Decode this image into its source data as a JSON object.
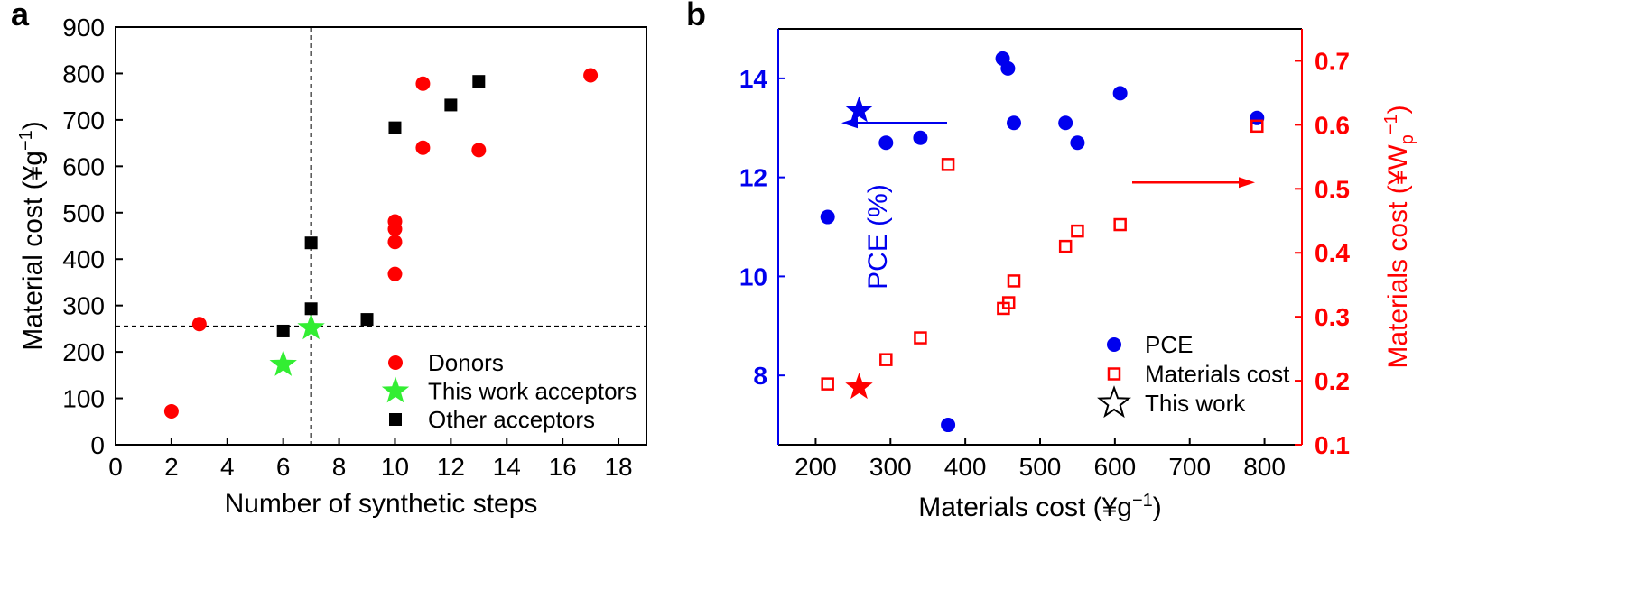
{
  "chart_data": [
    {
      "panel_label": "a",
      "type": "scatter",
      "xlabel": "Number of synthetic steps",
      "ylabel": "Material cost (¥g",
      "ylabel_sup": "−1",
      "ylabel_tail": ")",
      "xlim": [
        0,
        19
      ],
      "ylim": [
        0,
        900
      ],
      "xticks": [
        0,
        2,
        4,
        6,
        8,
        10,
        12,
        14,
        16,
        18
      ],
      "yticks": [
        0,
        100,
        200,
        300,
        400,
        500,
        600,
        700,
        800,
        900
      ],
      "reference_lines": {
        "x": 7,
        "y": 255
      },
      "legend_position": "bottom-right",
      "series": [
        {
          "name": "Donors",
          "marker": "circle",
          "color": "#ff0000",
          "points": [
            [
              2,
              72
            ],
            [
              3,
              260
            ],
            [
              10,
              368
            ],
            [
              10,
              437
            ],
            [
              10,
              465
            ],
            [
              10,
              481
            ],
            [
              11,
              640
            ],
            [
              11,
              778
            ],
            [
              13,
              635
            ],
            [
              17,
              796
            ]
          ]
        },
        {
          "name": "This work acceptors",
          "marker": "star",
          "color": "#33ee33",
          "points": [
            [
              6,
              173
            ],
            [
              7,
              252
            ]
          ]
        },
        {
          "name": "Other acceptors",
          "marker": "square",
          "color": "#000000",
          "points": [
            [
              6,
              245
            ],
            [
              7,
              293
            ],
            [
              7,
              435
            ],
            [
              9,
              270
            ],
            [
              10,
              683
            ],
            [
              12,
              732
            ],
            [
              13,
              783
            ]
          ]
        }
      ]
    },
    {
      "panel_label": "b",
      "type": "scatter",
      "xlabel": "Materials cost (¥g",
      "xlabel_sup": "−1",
      "xlabel_tail": ")",
      "ylabel_left": "PCE (%)",
      "ylabel_right": "Materials cost (¥W",
      "ylabel_right_sub": "p",
      "ylabel_right_sup": "−1",
      "ylabel_right_tail": ")",
      "xlim": [
        150,
        850
      ],
      "ylim_left": [
        6.6,
        15.0
      ],
      "ylim_right": [
        0.1,
        0.75
      ],
      "xticks": [
        200,
        300,
        400,
        500,
        600,
        700,
        800
      ],
      "yticks_left": [
        8,
        10,
        12,
        14
      ],
      "yticks_right": [
        "0.1",
        "0.2",
        "0.3",
        "0.4",
        "0.5",
        "0.6",
        "0.7"
      ],
      "left_color": "#0000ee",
      "right_color": "#ff0000",
      "legend_position": "bottom-right",
      "series": [
        {
          "name": "PCE",
          "axis": "left",
          "marker": "circle",
          "color": "#0000ee",
          "points": [
            [
              216,
              11.2
            ],
            [
              294,
              12.7
            ],
            [
              340,
              12.8
            ],
            [
              377,
              7.0
            ],
            [
              450,
              14.4
            ],
            [
              457,
              14.2
            ],
            [
              465,
              13.1
            ],
            [
              534,
              13.1
            ],
            [
              550,
              12.7
            ],
            [
              607,
              13.7
            ],
            [
              790,
              13.2
            ]
          ]
        },
        {
          "name": "Materials cost",
          "axis": "right",
          "marker": "open-square",
          "color": "#ff0000",
          "points": [
            [
              216,
              0.195
            ],
            [
              294,
              0.233
            ],
            [
              340,
              0.267
            ],
            [
              377,
              0.538
            ],
            [
              451,
              0.313
            ],
            [
              458,
              0.322
            ],
            [
              465,
              0.356
            ],
            [
              534,
              0.41
            ],
            [
              550,
              0.434
            ],
            [
              607,
              0.444
            ],
            [
              790,
              0.598
            ]
          ]
        },
        {
          "name": "This work",
          "marker": "star",
          "legend_marker": "open-star",
          "points_left": [
            [
              258,
              13.35
            ]
          ],
          "points_right": [
            [
              258,
              0.19
            ]
          ]
        }
      ]
    }
  ]
}
